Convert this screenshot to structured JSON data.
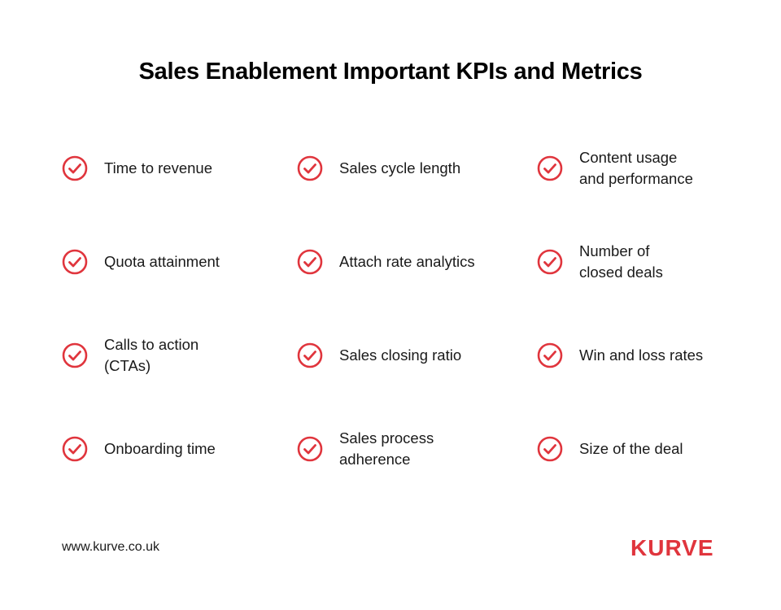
{
  "title": "Sales Enablement Important KPIs and Metrics",
  "accent_color": "#e0353d",
  "icon": "check-circle-icon",
  "metrics": [
    "Time to revenue",
    "Sales cycle length",
    "Content usage\nand performance",
    "Quota attainment",
    "Attach rate analytics",
    "Number of\nclosed deals",
    "Calls to action\n(CTAs)",
    "Sales closing ratio",
    "Win and loss rates",
    "Onboarding time",
    "Sales process\nadherence",
    "Size of the deal"
  ],
  "footer": {
    "url": "www.kurve.co.uk",
    "logo_text": "KURVE"
  }
}
